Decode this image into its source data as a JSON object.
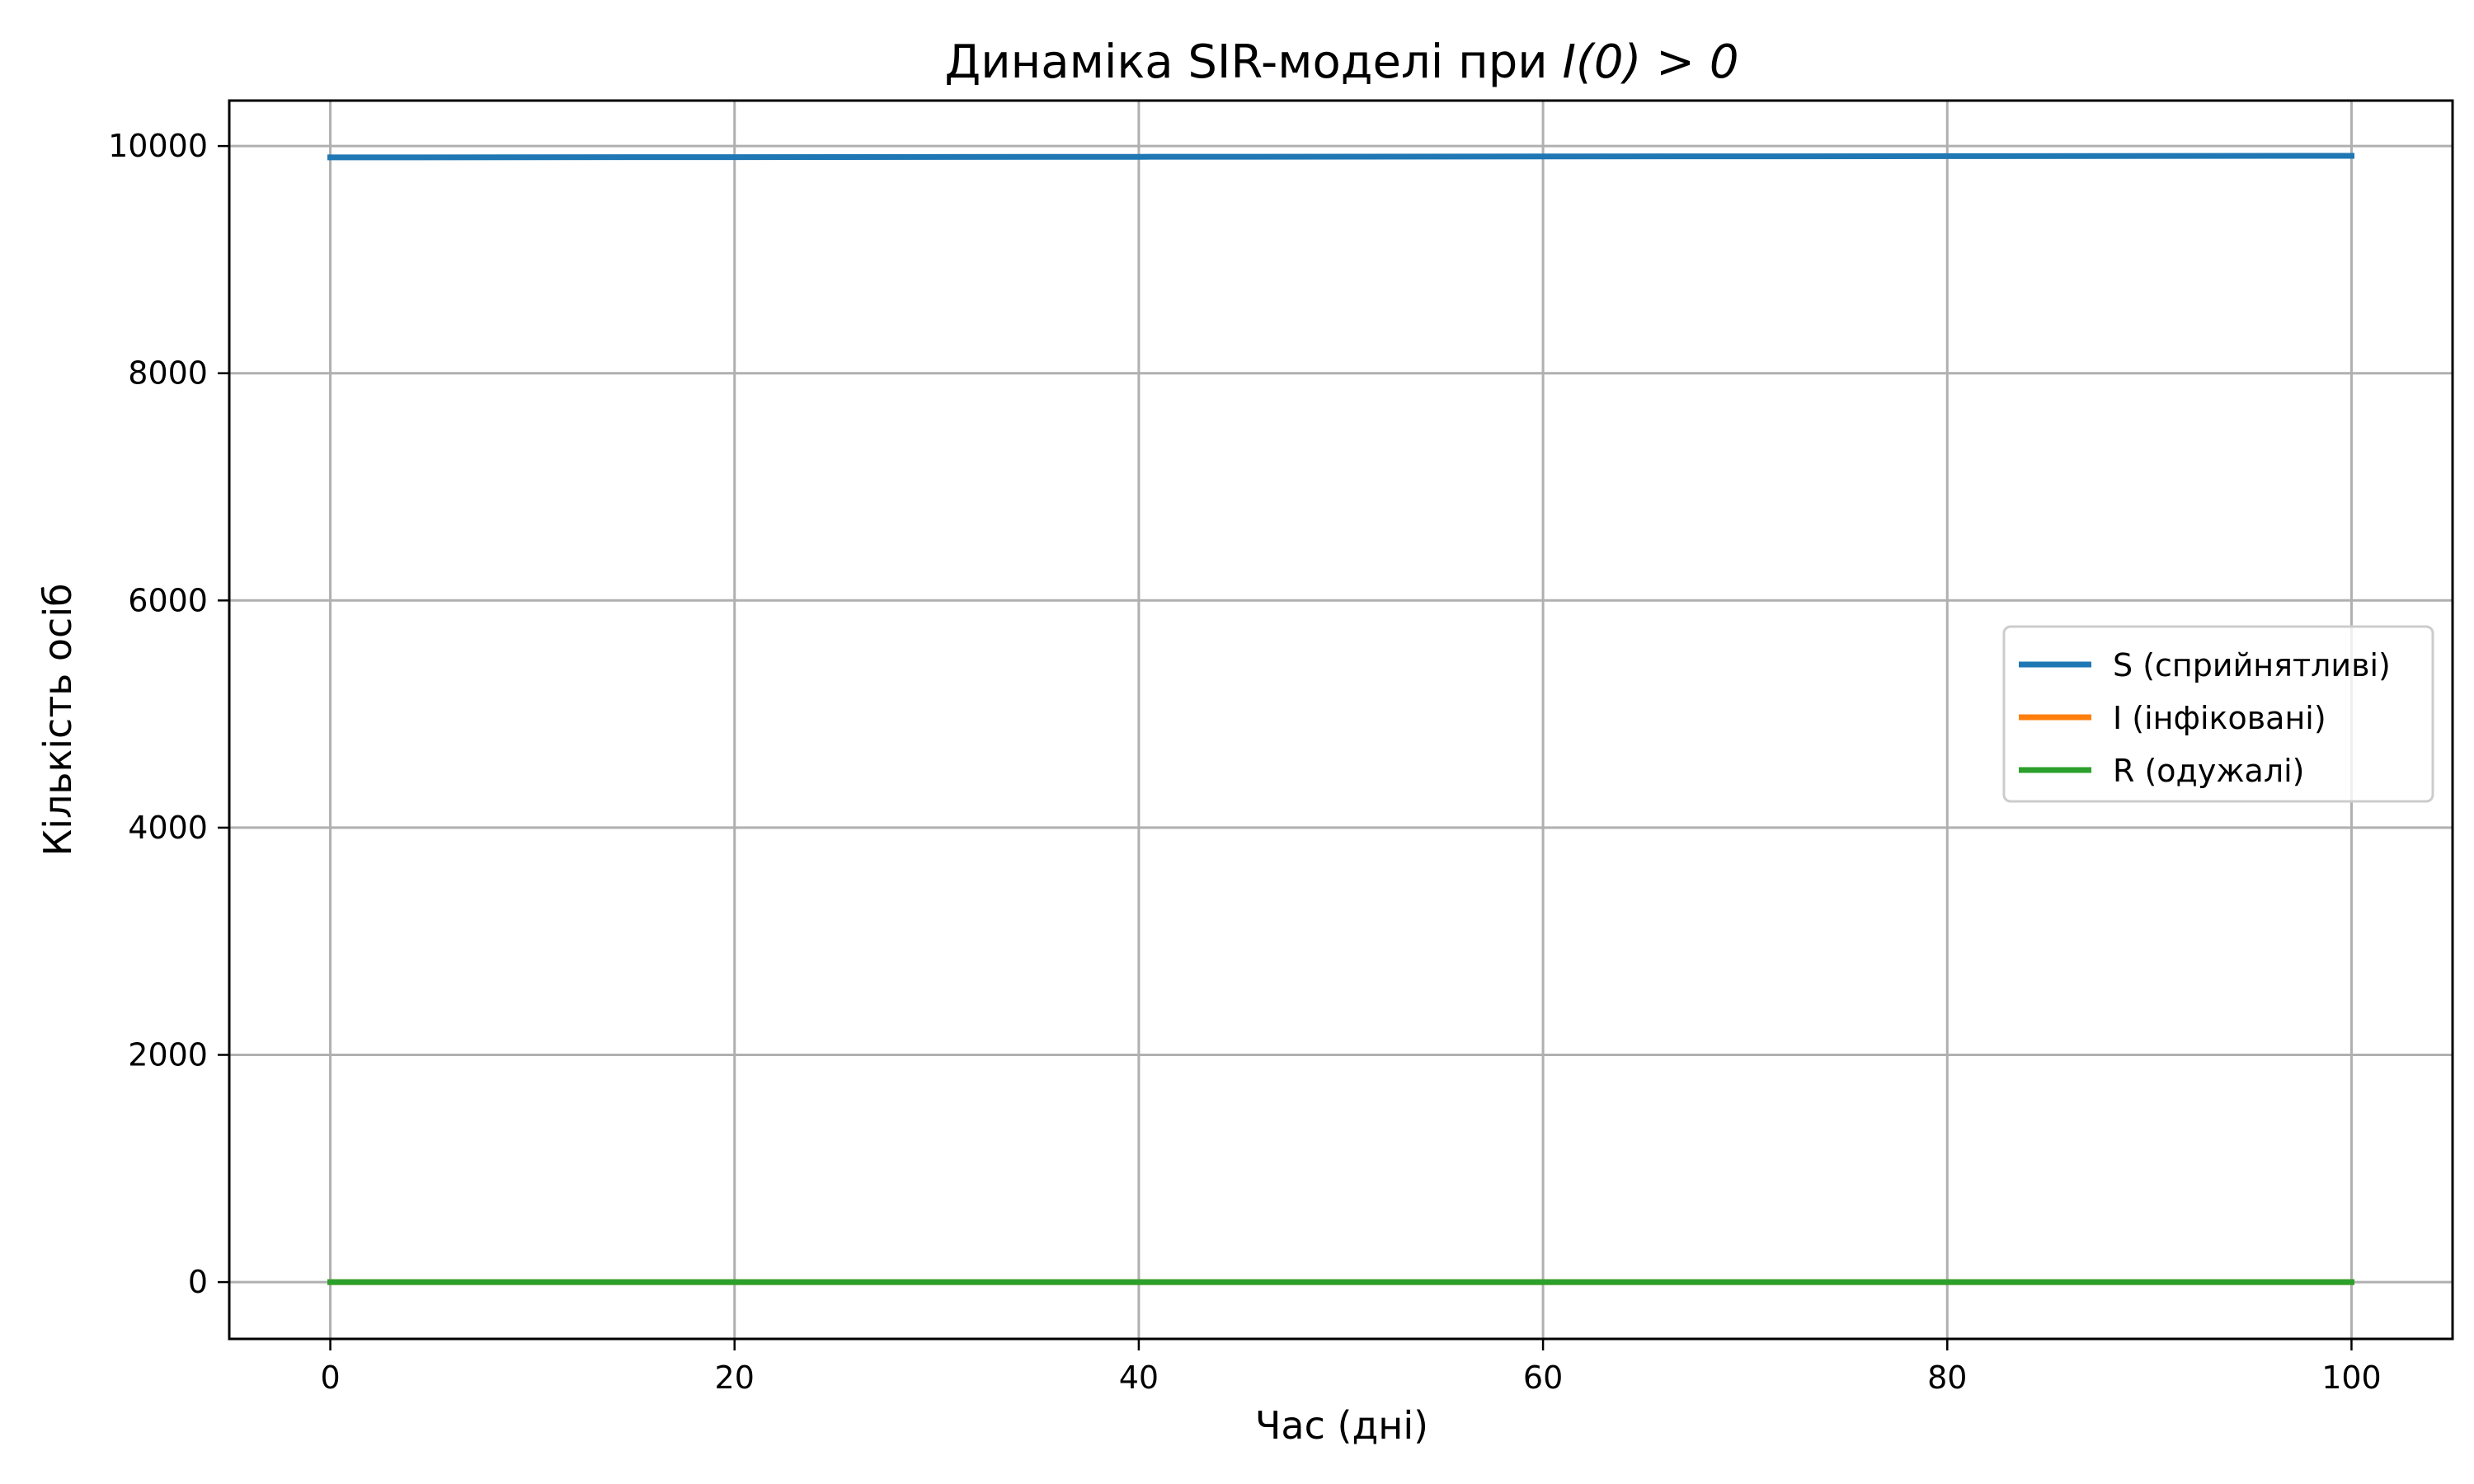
{
  "chart_data": {
    "type": "line",
    "title_prefix": "Динаміка SIR-моделі при ",
    "title_math": "I(0) > 0",
    "xlabel": "Час (дні)",
    "ylabel": "Кількість осіб",
    "xlim": [
      -5,
      105
    ],
    "ylim": [
      -500,
      10400
    ],
    "xticks": [
      0,
      20,
      40,
      60,
      80,
      100
    ],
    "xtick_labels": [
      "0",
      "20",
      "40",
      "60",
      "80",
      "100"
    ],
    "yticks": [
      0,
      2000,
      4000,
      6000,
      8000,
      10000
    ],
    "ytick_labels": [
      "0",
      "2000",
      "4000",
      "6000",
      "8000",
      "10000"
    ],
    "grid": true,
    "legend_position": "center-right",
    "x": [
      0,
      20,
      40,
      60,
      80,
      100
    ],
    "series": [
      {
        "name": "S (сприйнятливі)",
        "color": "#1f77b4",
        "values": [
          9900,
          9902,
          9905,
          9908,
          9911,
          9914
        ]
      },
      {
        "name": "I (інфіковані)",
        "color": "#ff7f0e",
        "values": [
          0,
          0,
          0,
          0,
          0,
          0
        ]
      },
      {
        "name": "R (одужалі)",
        "color": "#2ca02c",
        "values": [
          0,
          0,
          0,
          0,
          0,
          0
        ]
      }
    ]
  }
}
